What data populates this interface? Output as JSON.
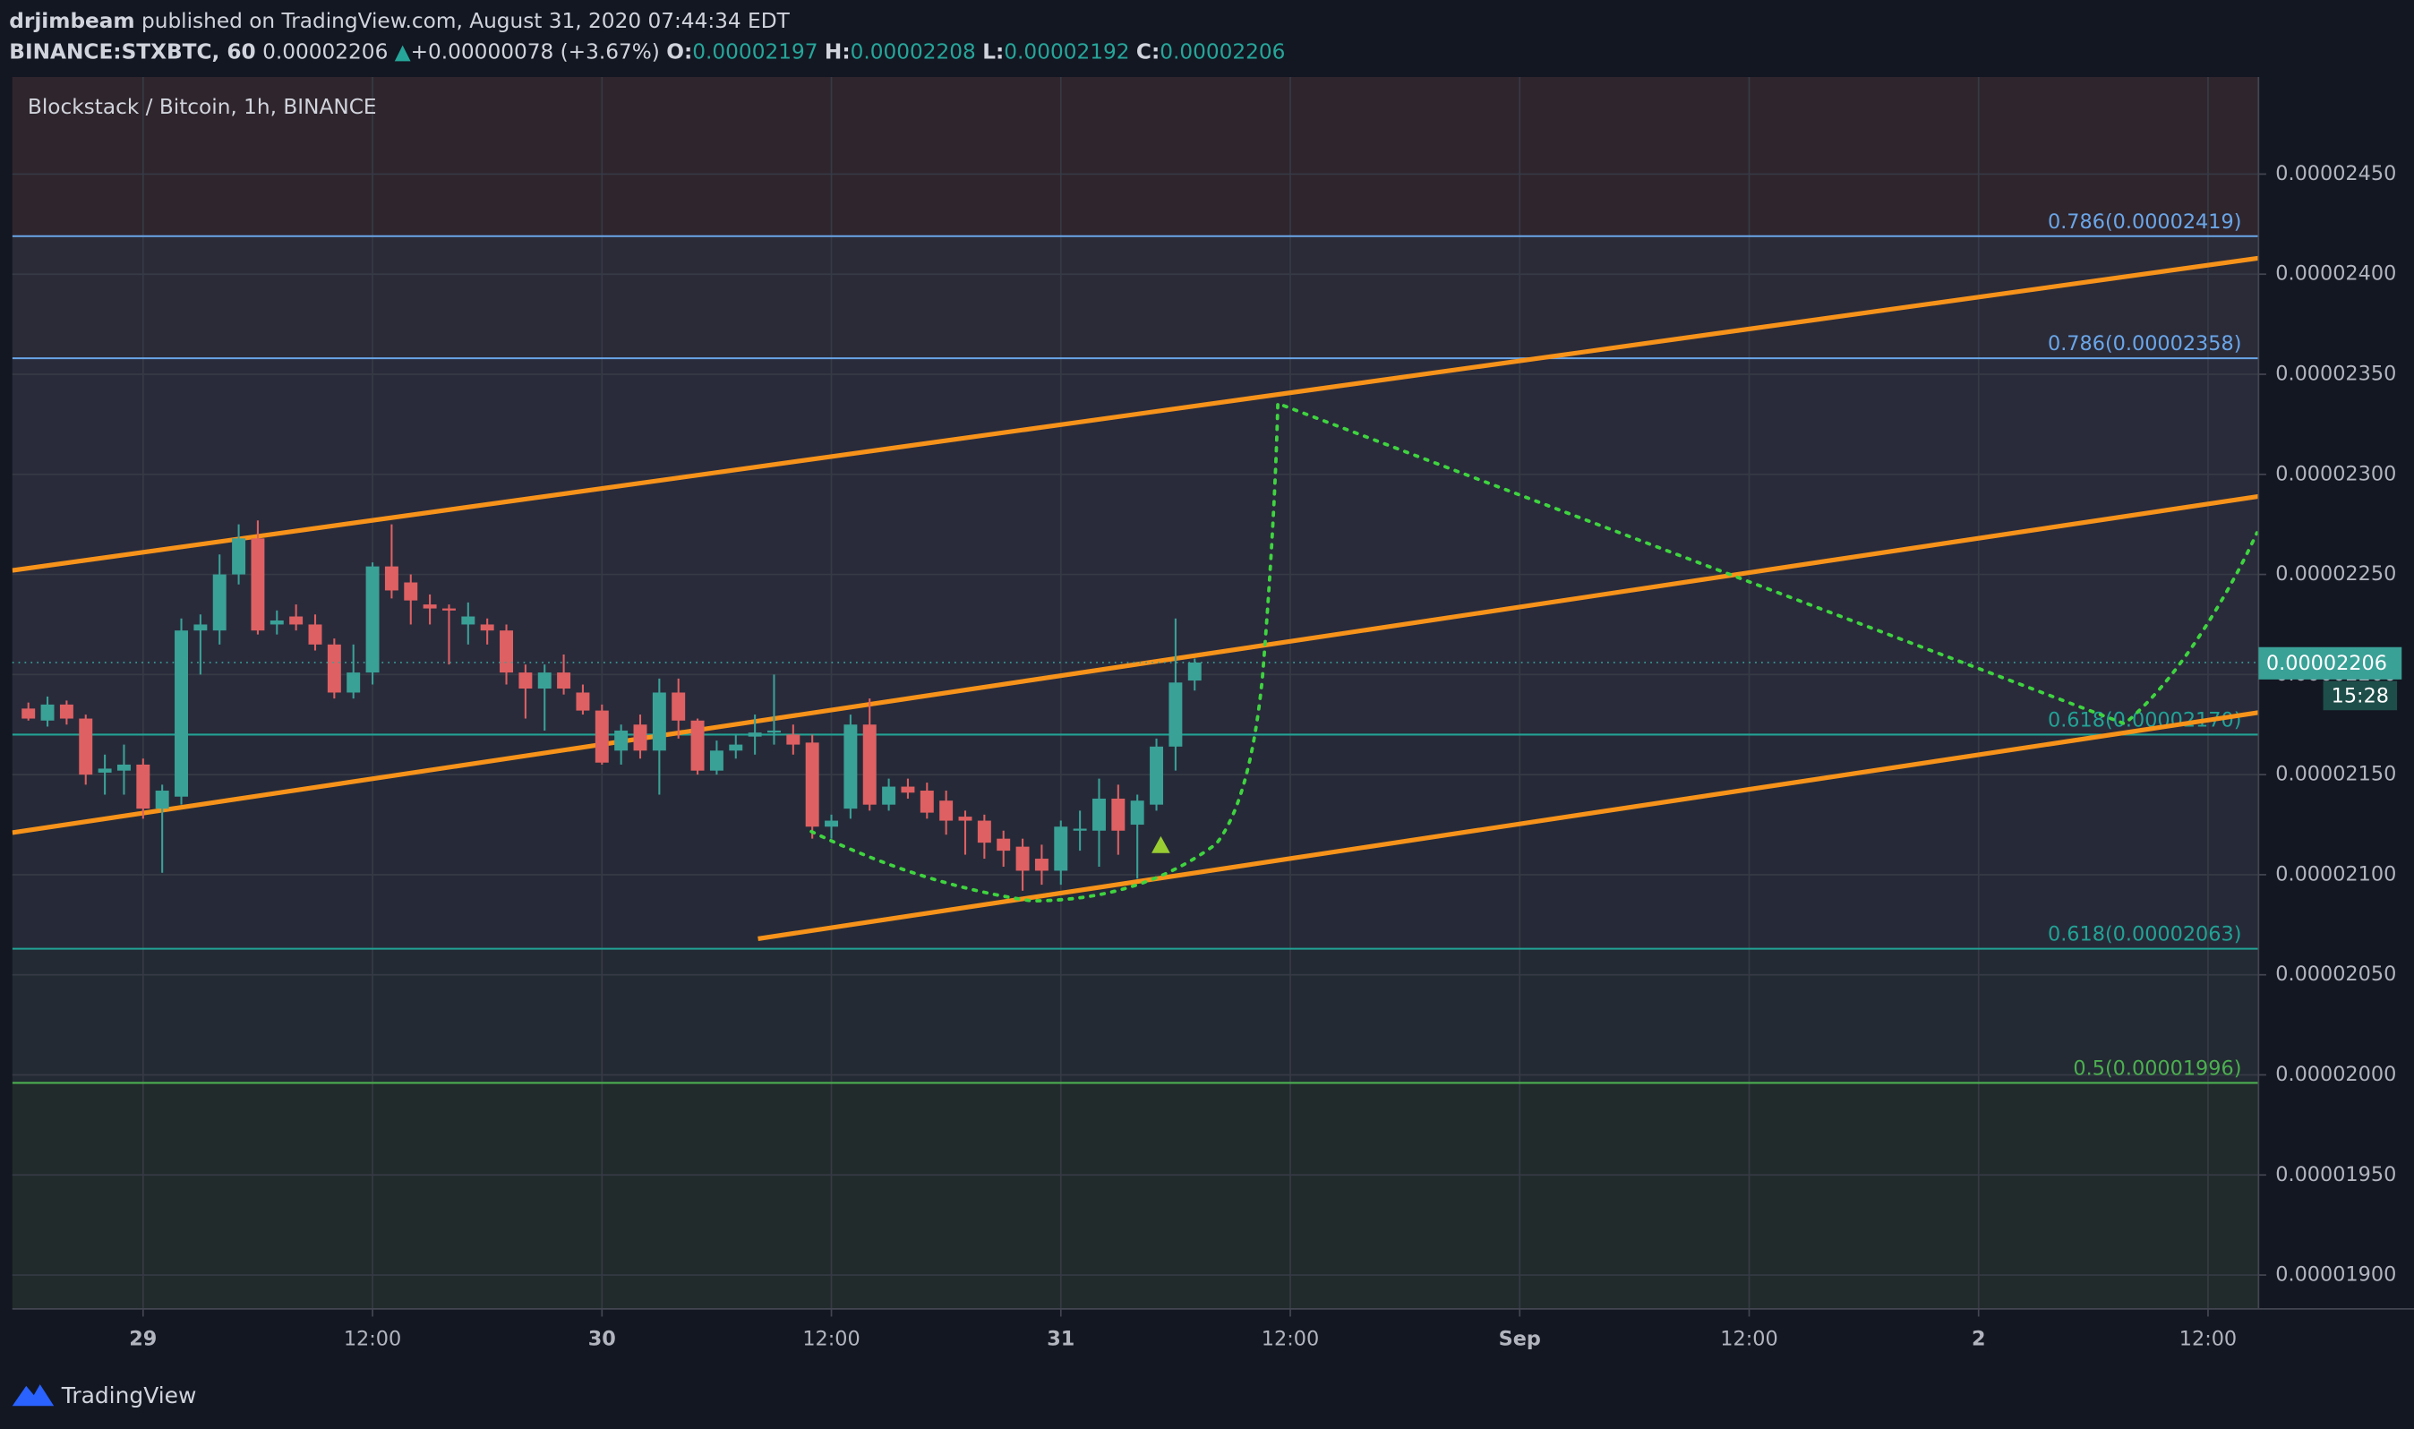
{
  "header": {
    "author": "drjimbeam",
    "published": "published on TradingView.com, August 31, 2020 07:44:34 EDT",
    "symbol": "BINANCE:STXBTC, 60",
    "last": "0.00002206",
    "arrow": "▲",
    "change": "+0.00000078 (+3.67%)",
    "o_label": "O:",
    "o": "0.00002197",
    "h_label": "H:",
    "h": "0.00002208",
    "l_label": "L:",
    "l": "0.00002192",
    "c_label": "C:",
    "c": "0.00002206"
  },
  "chart_data": {
    "type": "candlestick",
    "title": "Blockstack / Bitcoin, 1h, BINANCE",
    "x": [
      -6,
      -5,
      -4,
      -3,
      -2,
      -1,
      0,
      1,
      2,
      3,
      4,
      5,
      6,
      7,
      8,
      9,
      10,
      11,
      12,
      13,
      14,
      15,
      16,
      17,
      18,
      19,
      20,
      21,
      22,
      23,
      24,
      25,
      26,
      27,
      28,
      29,
      30,
      31,
      32,
      33,
      34,
      35,
      36,
      37,
      38,
      39,
      40,
      41,
      42,
      43,
      44,
      45,
      46,
      47,
      48,
      49,
      50,
      51,
      52,
      53,
      54,
      55
    ],
    "open": [
      2.183e-05,
      2.177e-05,
      2.185e-05,
      2.178e-05,
      2.151e-05,
      2.152e-05,
      2.155e-05,
      2.133e-05,
      2.139e-05,
      2.222e-05,
      2.222e-05,
      2.25e-05,
      2.268e-05,
      2.225e-05,
      2.229e-05,
      2.225e-05,
      2.215e-05,
      2.191e-05,
      2.201e-05,
      2.254e-05,
      2.246e-05,
      2.235e-05,
      2.233e-05,
      2.225e-05,
      2.225e-05,
      2.222e-05,
      2.201e-05,
      2.193e-05,
      2.201e-05,
      2.191e-05,
      2.182e-05,
      2.162e-05,
      2.175e-05,
      2.162e-05,
      2.191e-05,
      2.177e-05,
      2.152e-05,
      2.162e-05,
      2.169e-05,
      2.171e-05,
      2.17e-05,
      2.166e-05,
      2.124e-05,
      2.133e-05,
      2.175e-05,
      2.135e-05,
      2.144e-05,
      2.142e-05,
      2.137e-05,
      2.129e-05,
      2.127e-05,
      2.118e-05,
      2.114e-05,
      2.108e-05,
      2.102e-05,
      2.122e-05,
      2.122e-05,
      2.138e-05,
      2.125e-05,
      2.135e-05,
      2.164e-05,
      2.197e-05
    ],
    "high": [
      2.186e-05,
      2.189e-05,
      2.187e-05,
      2.18e-05,
      2.16e-05,
      2.165e-05,
      2.158e-05,
      2.145e-05,
      2.228e-05,
      2.23e-05,
      2.26e-05,
      2.275e-05,
      2.277e-05,
      2.232e-05,
      2.235e-05,
      2.23e-05,
      2.218e-05,
      2.215e-05,
      2.256e-05,
      2.275e-05,
      2.25e-05,
      2.24e-05,
      2.235e-05,
      2.236e-05,
      2.228e-05,
      2.225e-05,
      2.205e-05,
      2.205e-05,
      2.21e-05,
      2.195e-05,
      2.185e-05,
      2.175e-05,
      2.18e-05,
      2.198e-05,
      2.198e-05,
      2.178e-05,
      2.167e-05,
      2.17e-05,
      2.18e-05,
      2.2e-05,
      2.175e-05,
      2.17e-05,
      2.13e-05,
      2.18e-05,
      2.188e-05,
      2.148e-05,
      2.148e-05,
      2.146e-05,
      2.142e-05,
      2.132e-05,
      2.13e-05,
      2.122e-05,
      2.118e-05,
      2.115e-05,
      2.127e-05,
      2.132e-05,
      2.148e-05,
      2.145e-05,
      2.14e-05,
      2.168e-05,
      2.228e-05,
      2.208e-05
    ],
    "low": [
      2.177e-05,
      2.174e-05,
      2.175e-05,
      2.145e-05,
      2.14e-05,
      2.14e-05,
      2.128e-05,
      2.101e-05,
      2.135e-05,
      2.2e-05,
      2.215e-05,
      2.245e-05,
      2.22e-05,
      2.22e-05,
      2.222e-05,
      2.212e-05,
      2.188e-05,
      2.188e-05,
      2.195e-05,
      2.238e-05,
      2.225e-05,
      2.225e-05,
      2.205e-05,
      2.215e-05,
      2.215e-05,
      2.195e-05,
      2.178e-05,
      2.172e-05,
      2.19e-05,
      2.18e-05,
      2.155e-05,
      2.155e-05,
      2.158e-05,
      2.14e-05,
      2.168e-05,
      2.15e-05,
      2.15e-05,
      2.158e-05,
      2.16e-05,
      2.165e-05,
      2.16e-05,
      2.118e-05,
      2.118e-05,
      2.128e-05,
      2.132e-05,
      2.132e-05,
      2.138e-05,
      2.128e-05,
      2.12e-05,
      2.11e-05,
      2.108e-05,
      2.104e-05,
      2.092e-05,
      2.095e-05,
      2.095e-05,
      2.112e-05,
      2.104e-05,
      2.11e-05,
      2.098e-05,
      2.132e-05,
      2.152e-05,
      2.192e-05
    ],
    "close": [
      2.178e-05,
      2.185e-05,
      2.178e-05,
      2.15e-05,
      2.153e-05,
      2.155e-05,
      2.133e-05,
      2.142e-05,
      2.222e-05,
      2.225e-05,
      2.25e-05,
      2.268e-05,
      2.222e-05,
      2.227e-05,
      2.225e-05,
      2.215e-05,
      2.191e-05,
      2.201e-05,
      2.254e-05,
      2.242e-05,
      2.237e-05,
      2.233e-05,
      2.232e-05,
      2.229e-05,
      2.222e-05,
      2.201e-05,
      2.193e-05,
      2.201e-05,
      2.193e-05,
      2.182e-05,
      2.156e-05,
      2.172e-05,
      2.162e-05,
      2.191e-05,
      2.177e-05,
      2.152e-05,
      2.162e-05,
      2.165e-05,
      2.171e-05,
      2.172e-05,
      2.165e-05,
      2.124e-05,
      2.127e-05,
      2.175e-05,
      2.135e-05,
      2.144e-05,
      2.141e-05,
      2.131e-05,
      2.127e-05,
      2.127e-05,
      2.116e-05,
      2.112e-05,
      2.102e-05,
      2.102e-05,
      2.124e-05,
      2.123e-05,
      2.138e-05,
      2.122e-05,
      2.137e-05,
      2.164e-05,
      2.196e-05,
      2.206e-05
    ],
    "up_color": "#3aa197",
    "down_color": "#df6062",
    "xlim": [
      -6.84,
      110.64
    ],
    "xticks": [
      {
        "value": 0,
        "label": "29"
      },
      {
        "value": 12,
        "label": "12:00"
      },
      {
        "value": 24,
        "label": "30"
      },
      {
        "value": 36,
        "label": "12:00"
      },
      {
        "value": 48,
        "label": "31"
      },
      {
        "value": 60,
        "label": "12:00"
      },
      {
        "value": 72,
        "label": "Sep"
      },
      {
        "value": 84,
        "label": "12:00"
      },
      {
        "value": 96,
        "label": "2"
      },
      {
        "value": 108,
        "label": "12:00"
      }
    ],
    "ylim": [
      1.8831e-05,
      2.4985e-05
    ],
    "yticks": [
      {
        "value": 1.9e-05,
        "label": "0.00001900"
      },
      {
        "value": 1.95e-05,
        "label": "0.00001950"
      },
      {
        "value": 2e-05,
        "label": "0.00002000"
      },
      {
        "value": 2.05e-05,
        "label": "0.00002050"
      },
      {
        "value": 2.1e-05,
        "label": "0.00002100"
      },
      {
        "value": 2.15e-05,
        "label": "0.00002150"
      },
      {
        "value": 2.2e-05,
        "label": "0.00002200"
      },
      {
        "value": 2.25e-05,
        "label": "0.00002250"
      },
      {
        "value": 2.3e-05,
        "label": "0.00002300"
      },
      {
        "value": 2.35e-05,
        "label": "0.00002350"
      },
      {
        "value": 2.4e-05,
        "label": "0.00002400"
      },
      {
        "value": 2.45e-05,
        "label": "0.00002450"
      }
    ],
    "grid": true,
    "fib_levels": [
      {
        "label": "0.786(0.00002419)",
        "value": 2.419e-05,
        "color": "#6aa6e8"
      },
      {
        "label": "0.786(0.00002358)",
        "value": 2.358e-05,
        "color": "#6aa6e8"
      },
      {
        "label": "0.618(0.00002170)",
        "value": 2.17e-05,
        "color": "#22a295"
      },
      {
        "label": "0.618(0.00002063)",
        "value": 2.063e-05,
        "color": "#22a295"
      },
      {
        "label": "0.5(0.00001996)",
        "value": 1.996e-05,
        "color": "#4caf50"
      }
    ],
    "trendlines": [
      [
        [
          -6.84,
          2.252e-05
        ],
        [
          110.64,
          2.408e-05
        ]
      ],
      [
        [
          -6.84,
          2.121e-05
        ],
        [
          110.64,
          2.289e-05
        ]
      ],
      [
        [
          32.16,
          2.068e-05
        ],
        [
          110.64,
          2.181e-05
        ]
      ]
    ],
    "trendline_color": "#f7931a",
    "countdown": "15:28"
  },
  "footer": {
    "brand": "TradingView"
  }
}
